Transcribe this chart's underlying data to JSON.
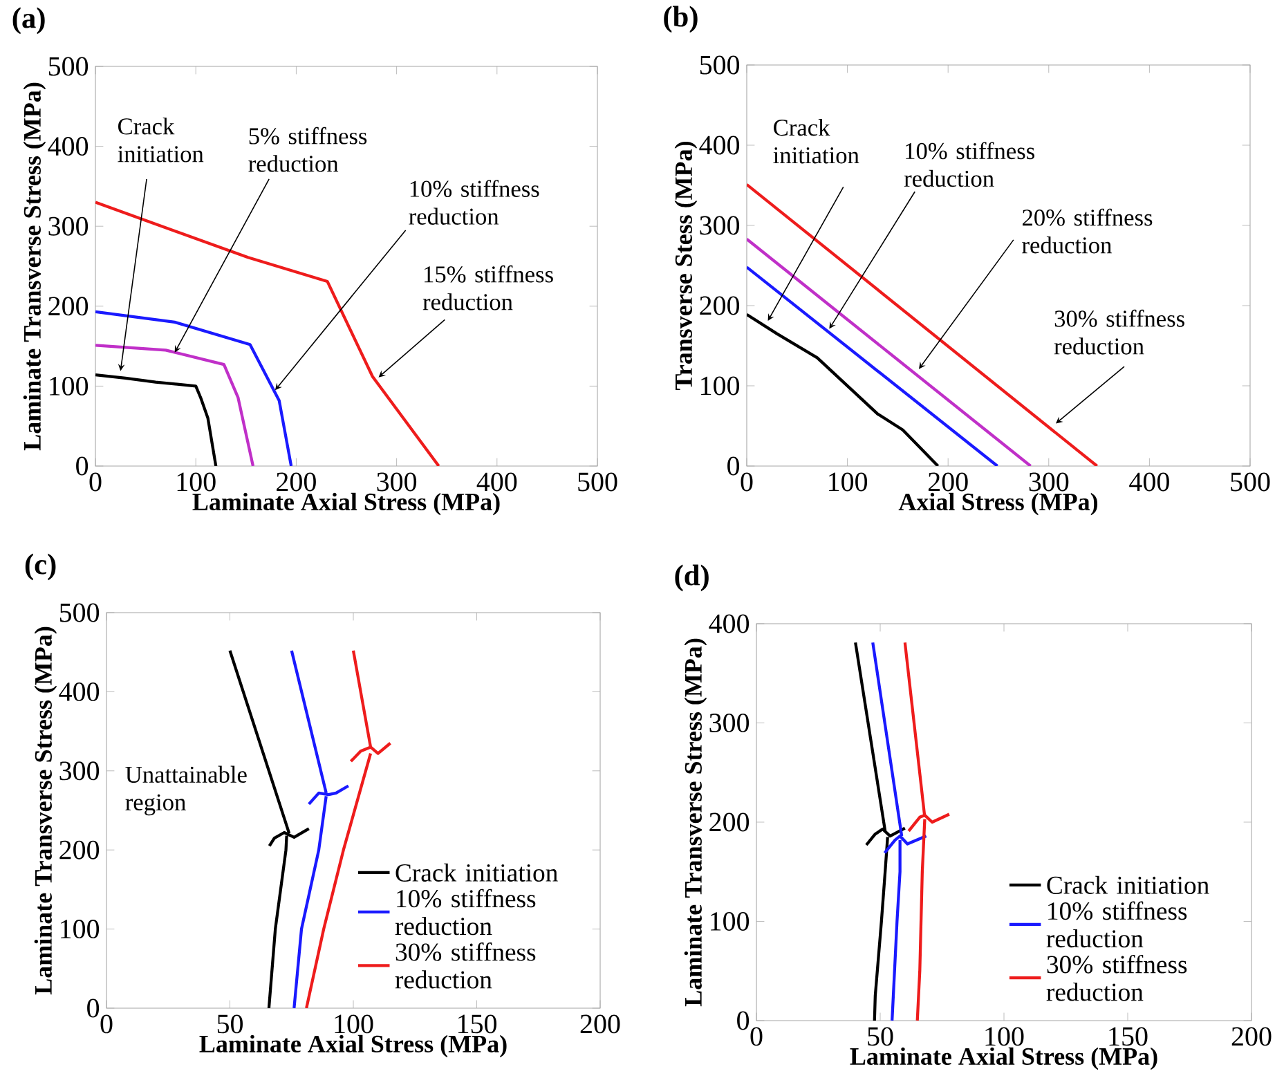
{
  "chart_data": [
    {
      "type": "line",
      "title": "(a)",
      "xlabel": "Laminate Axial Stress (MPa)",
      "ylabel": "Laminate Transverse Stress (MPa)",
      "xlim": [
        0,
        500
      ],
      "ylim": [
        0,
        500
      ],
      "xticks": [
        0,
        100,
        200,
        300,
        400,
        500
      ],
      "yticks": [
        0,
        100,
        200,
        300,
        400,
        500
      ],
      "series": [
        {
          "color": "#000000",
          "x": [
            0,
            30,
            60,
            100,
            105,
            112,
            120
          ],
          "values": [
            114,
            110,
            105,
            100,
            85,
            60,
            0
          ]
        },
        {
          "color": "#c030c8",
          "x": [
            0,
            70,
            128,
            142,
            157
          ],
          "values": [
            151,
            145,
            127,
            86,
            0
          ]
        },
        {
          "color": "#1a1aff",
          "x": [
            0,
            79,
            154,
            183,
            195
          ],
          "values": [
            193,
            180,
            152,
            82,
            0
          ]
        },
        {
          "color": "#ee1c1c",
          "x": [
            0,
            152,
            231,
            276,
            342
          ],
          "values": [
            330,
            261,
            231,
            112,
            0
          ]
        }
      ],
      "annotations": [
        {
          "text": "Crack initiation",
          "x": 25,
          "y": 119
        },
        {
          "text": "5% stiffness reduction",
          "x": 79,
          "y": 142
        },
        {
          "text": "10% stiffness reduction",
          "x": 179,
          "y": 95
        },
        {
          "text": "15% stiffness reduction",
          "x": 282,
          "y": 111
        }
      ]
    },
    {
      "type": "line",
      "title": "(b)",
      "xlabel": "Axial Stress (MPa)",
      "ylabel": "Transverse Stess (MPa)",
      "xlim": [
        0,
        500
      ],
      "ylim": [
        0,
        500
      ],
      "xticks": [
        0,
        100,
        200,
        300,
        400,
        500
      ],
      "yticks": [
        0,
        100,
        200,
        300,
        400,
        500
      ],
      "series": [
        {
          "color": "#000000",
          "x": [
            0,
            30,
            70,
            100,
            130,
            155,
            190
          ],
          "values": [
            189,
            165,
            135,
            100,
            65,
            45,
            0
          ]
        },
        {
          "color": "#1a1aff",
          "x": [
            0,
            249
          ],
          "values": [
            248,
            0
          ]
        },
        {
          "color": "#c030c8",
          "x": [
            0,
            282
          ],
          "values": [
            283,
            0
          ]
        },
        {
          "color": "#ee1c1c",
          "x": [
            0,
            348
          ],
          "values": [
            351,
            0
          ]
        }
      ],
      "annotations": [
        {
          "text": "Crack initiation",
          "x": 21,
          "y": 181
        },
        {
          "text": "10% stiffness reduction",
          "x": 82,
          "y": 171
        },
        {
          "text": "20% stiffness reduction",
          "x": 171,
          "y": 121
        },
        {
          "text": "30% stiffness reduction",
          "x": 307,
          "y": 53
        }
      ]
    },
    {
      "type": "line",
      "title": "(c)",
      "xlabel": "Laminate Axial Stress (MPa)",
      "ylabel": "Laminate Transverse Stress (MPa)",
      "xlim": [
        0,
        200
      ],
      "ylim": [
        0,
        500
      ],
      "xticks": [
        0,
        50,
        100,
        150,
        200
      ],
      "yticks": [
        0,
        100,
        200,
        300,
        400,
        500
      ],
      "legend": "bottom right",
      "series": [
        {
          "name": "Crack initiation",
          "color": "#000000",
          "x": [
            50,
            74,
            null,
            66,
            68,
            72,
            76,
            82,
            null,
            73,
            72.7,
            68.4,
            65.8
          ],
          "values": [
            452,
            221,
            null,
            205,
            215,
            222,
            216,
            227,
            null,
            218,
            200,
            100,
            0
          ]
        },
        {
          "name": "10% stiffness reduction",
          "color": "#1a1aff",
          "x": [
            75,
            89,
            null,
            82,
            86,
            90,
            93,
            98,
            null,
            89,
            86,
            79,
            76
          ],
          "values": [
            452,
            272,
            null,
            258,
            272,
            270,
            272,
            281,
            null,
            268,
            200,
            100,
            0
          ]
        },
        {
          "name": "30% stiffness reduction",
          "color": "#ee1c1c",
          "x": [
            100,
            107,
            null,
            99,
            103,
            107,
            110,
            115,
            null,
            107,
            96,
            88,
            81
          ],
          "values": [
            452,
            330,
            null,
            312,
            325,
            330,
            322,
            335,
            null,
            322,
            200,
            100,
            0
          ]
        }
      ],
      "annotations": [
        "Unattainable region"
      ]
    },
    {
      "type": "line",
      "title": "(d)",
      "xlabel": "Laminate Axial Stress (MPa)",
      "ylabel": "Laminate Transverse Stress (MPa)",
      "xlim": [
        0,
        200
      ],
      "ylim": [
        0,
        400
      ],
      "xticks": [
        0,
        50,
        100,
        150,
        200
      ],
      "yticks": [
        0,
        100,
        200,
        300,
        400
      ],
      "legend": "bottom right",
      "series": [
        {
          "name": "Crack initiation",
          "color": "#000000",
          "x": [
            40,
            52,
            null,
            44.4,
            48,
            51,
            54,
            60,
            null,
            53,
            52,
            50.5,
            48,
            47.7
          ],
          "values": [
            381,
            191,
            null,
            177,
            188,
            193,
            186,
            194,
            null,
            185,
            150,
            100,
            25,
            0
          ]
        },
        {
          "name": "10% stiffness reduction",
          "color": "#1a1aff",
          "x": [
            47,
            58.7,
            null,
            51.8,
            56,
            58,
            61,
            68.6,
            null,
            58,
            58,
            56.8,
            54.8
          ],
          "values": [
            381,
            186,
            null,
            169,
            182,
            186,
            178,
            186,
            null,
            182,
            150,
            100,
            0
          ]
        },
        {
          "name": "30% stiffness reduction",
          "color": "#ee1c1c",
          "x": [
            60,
            68,
            null,
            61.5,
            66,
            68,
            71,
            77.9,
            null,
            68,
            67,
            66,
            65
          ],
          "values": [
            381,
            205,
            null,
            191,
            205,
            207,
            200,
            208,
            null,
            203,
            150,
            50,
            0
          ]
        }
      ]
    }
  ]
}
